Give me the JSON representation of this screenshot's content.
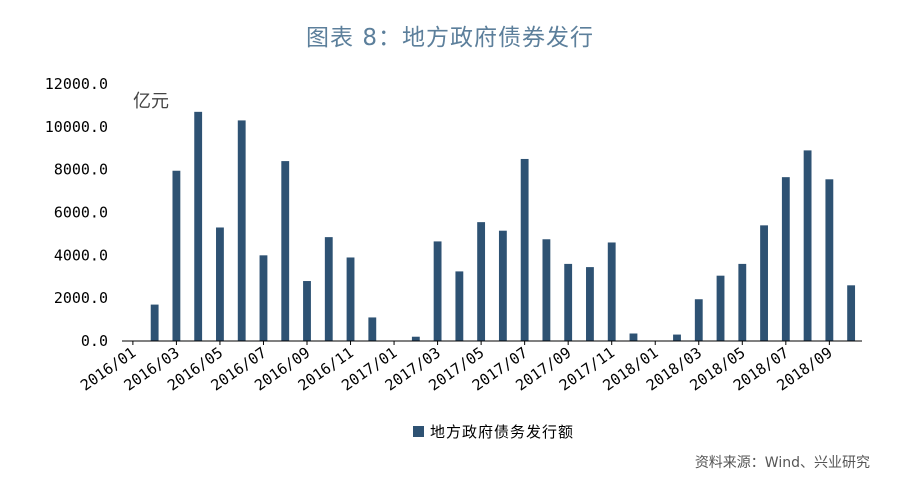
{
  "title": "图表 8：地方政府债券发行",
  "source": "资料来源：Wind、兴业研究",
  "chart_data": {
    "type": "bar",
    "title": "图表 8：地方政府债券发行",
    "unit": "亿元",
    "ylim": [
      0,
      12000
    ],
    "yticks": [
      "0.0",
      "2000.0",
      "4000.0",
      "6000.0",
      "8000.0",
      "10000.0",
      "12000.0"
    ],
    "grid": false,
    "legend_position": "bottom-center",
    "bar_color": "#2e5273",
    "categories": [
      "2016/01",
      "2016/02",
      "2016/03",
      "2016/04",
      "2016/05",
      "2016/06",
      "2016/07",
      "2016/08",
      "2016/09",
      "2016/10",
      "2016/11",
      "2016/12",
      "2017/01",
      "2017/02",
      "2017/03",
      "2017/04",
      "2017/05",
      "2017/06",
      "2017/07",
      "2017/08",
      "2017/09",
      "2017/10",
      "2017/11",
      "2017/12",
      "2018/01",
      "2018/02",
      "2018/03",
      "2018/04",
      "2018/05",
      "2018/06",
      "2018/07",
      "2018/08",
      "2018/09",
      "2018/10"
    ],
    "xtick_labels": [
      "2016/01",
      "2016/03",
      "2016/05",
      "2016/07",
      "2016/09",
      "2016/11",
      "2017/01",
      "2017/03",
      "2017/05",
      "2017/07",
      "2017/09",
      "2017/11",
      "2018/01",
      "2018/03",
      "2018/05",
      "2018/07",
      "2018/09"
    ],
    "series": [
      {
        "name": "地方政府债务发行额",
        "values": [
          0,
          1700,
          7950,
          10700,
          5300,
          10300,
          4000,
          8400,
          2800,
          4850,
          3900,
          1100,
          0,
          200,
          4650,
          3250,
          5550,
          5150,
          8500,
          4750,
          3600,
          3450,
          4600,
          350,
          0,
          300,
          1950,
          3050,
          3600,
          5400,
          7650,
          8900,
          7550,
          2600
        ]
      }
    ]
  }
}
